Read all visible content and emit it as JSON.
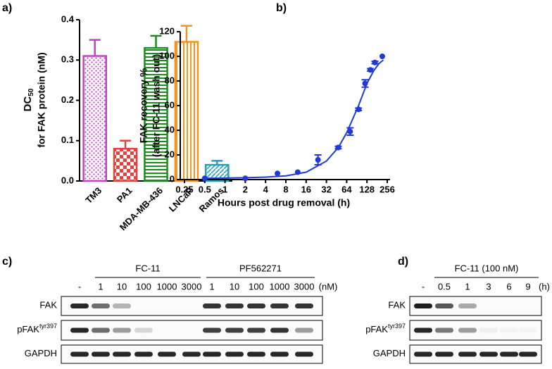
{
  "panel_labels": [
    "a)",
    "b)",
    "c)",
    "d)"
  ],
  "chart_data": [
    {
      "type": "bar",
      "ylabel": {
        "main": "DC",
        "sub": "50",
        "line2": "for FAK protein (nM)"
      },
      "categories": [
        "TM3",
        "PA1",
        "MDA-MB-436",
        "LNCaP",
        "Ramos"
      ],
      "values": [
        0.31,
        0.08,
        0.33,
        0.345,
        0.04
      ],
      "errors": [
        0.04,
        0.02,
        0.03,
        0.04,
        0.01
      ],
      "colors": [
        "#c23fc2",
        "#e8403c",
        "#1f8a1f",
        "#f39422",
        "#1fa3b5"
      ],
      "pattern": [
        "dots",
        "checker",
        "hlines",
        "vlines",
        "diagonal"
      ],
      "ylim": [
        0,
        0.4
      ],
      "yticks": [
        {
          "value": 0,
          "label": "0.0"
        },
        0.1,
        0.2,
        0.3,
        0.4
      ]
    },
    {
      "type": "scatter",
      "ylabel": [
        "FAK recovery %",
        "(after FC-11 wash out)"
      ],
      "xlabel": "Hours post drug removal (h)",
      "xlog": 2,
      "series": [
        {
          "color": "#1f3ad8",
          "x": [
            0.5,
            2,
            6,
            12,
            24,
            48,
            72,
            96,
            120,
            144,
            168,
            216
          ],
          "values": [
            1,
            1,
            5,
            6,
            16,
            26,
            39,
            57,
            78,
            89,
            95,
            100
          ],
          "errors": [
            0,
            0,
            0,
            0,
            4,
            1,
            3,
            1,
            3,
            1,
            1,
            0
          ]
        },
        {
          "color": "#1f3ad8",
          "x": [
            0.5,
            2,
            4,
            8,
            16,
            32,
            48,
            64,
            96,
            128,
            160,
            192,
            224
          ],
          "values": [
            1,
            1.5,
            2,
            3,
            6,
            15,
            26,
            38,
            60,
            78,
            88,
            94,
            97
          ]
        }
      ],
      "xlim": [
        0.25,
        256
      ],
      "xticks": [
        0.25,
        0.5,
        1,
        2,
        4,
        8,
        16,
        32,
        64,
        128,
        256
      ],
      "ylim": [
        0,
        120
      ],
      "yticks": [
        0,
        20,
        40,
        60,
        80,
        100,
        120
      ]
    }
  ],
  "blot_c": {
    "groups": [
      "FC-11",
      "PF562271"
    ],
    "lanes": [
      "-",
      "1",
      "10",
      "100",
      "1000",
      "3000",
      "1",
      "10",
      "100",
      "1000",
      "3000"
    ],
    "unit": "(nM)",
    "rows": [
      {
        "label": "FAK",
        "bands": [
          0.9,
          0.6,
          0.3,
          0,
          0,
          0,
          0.85,
          0.85,
          0.85,
          0.85,
          0.85
        ]
      },
      {
        "label": "pFAK",
        "sup": "tyr397",
        "bands": [
          0.9,
          0.6,
          0.4,
          0.15,
          0,
          0,
          0.8,
          0.8,
          0.8,
          0.85,
          0.4
        ]
      },
      {
        "label": "GAPDH",
        "bands": [
          0.9,
          0.9,
          0.9,
          0.9,
          0.9,
          0.9,
          0.9,
          0.9,
          0.9,
          0.9,
          0.9
        ]
      }
    ]
  },
  "blot_d": {
    "groups": [
      "FC-11 (100 nM)"
    ],
    "lanes": [
      "-",
      "0.5",
      "1",
      "3",
      "6",
      "9"
    ],
    "unit": "(h)",
    "rows": [
      {
        "label": "FAK",
        "bands": [
          0.95,
          0.7,
          0.35,
          0,
          0,
          0
        ]
      },
      {
        "label": "pFAK",
        "sup": "tyr397",
        "bands": [
          0.9,
          0.55,
          0.4,
          0.05,
          0.03,
          0.03
        ]
      },
      {
        "label": "GAPDH",
        "bands": [
          0.9,
          0.9,
          0.9,
          0.9,
          0.9,
          0.9
        ]
      }
    ]
  }
}
